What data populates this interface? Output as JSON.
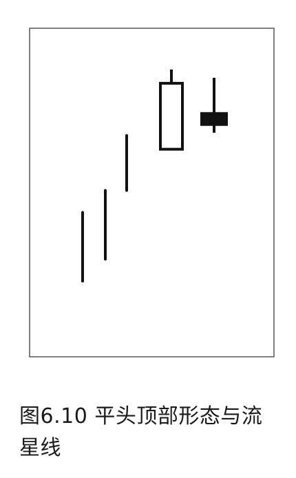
{
  "caption": "图6.10 平头顶部形态与流星线",
  "chart_data": {
    "type": "candlestick",
    "ylim": [
      0,
      100
    ],
    "candles": [
      {
        "low": 18,
        "high": 43,
        "open": 18,
        "close": 43,
        "style": "line"
      },
      {
        "low": 26,
        "high": 51,
        "open": 26,
        "close": 51,
        "style": "line"
      },
      {
        "low": 51,
        "high": 71,
        "open": 51,
        "close": 71,
        "style": "line"
      },
      {
        "low": 66,
        "high": 95,
        "open": 66,
        "close": 90,
        "style": "hollow"
      },
      {
        "low": 72,
        "high": 92,
        "open": 79,
        "close": 75,
        "style": "filled"
      }
    ]
  }
}
